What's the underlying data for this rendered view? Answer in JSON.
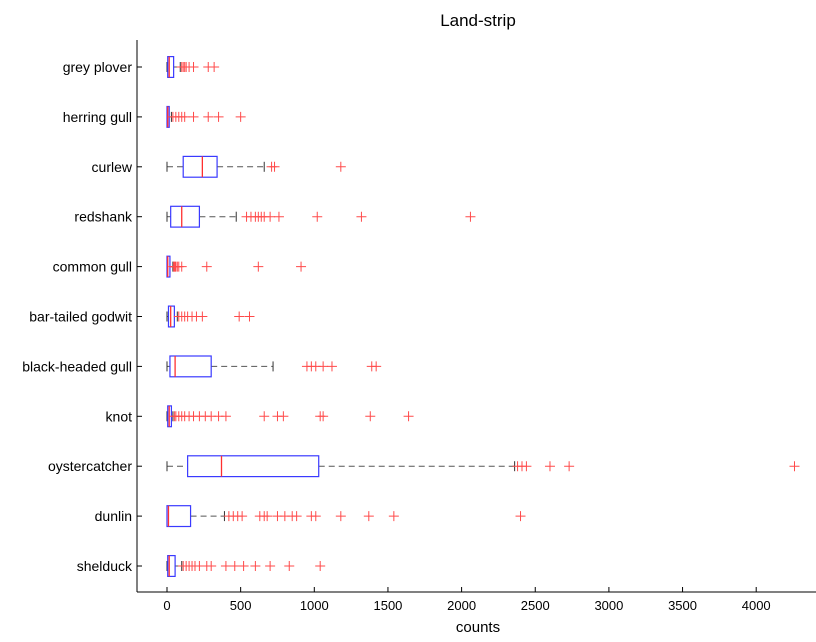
{
  "chart_data": {
    "type": "boxplot",
    "orientation": "horizontal",
    "title": "Land-strip",
    "xlabel": "counts",
    "ylabel": "",
    "xlim": [
      -200,
      4400
    ],
    "xticks": [
      0,
      500,
      1000,
      1500,
      2000,
      2500,
      3000,
      3500,
      4000,
      4500
    ],
    "xtick_labels": [
      "0",
      "500",
      "1000",
      "1500",
      "2000",
      "2500",
      "3000",
      "3500",
      "4000"
    ],
    "grid": false,
    "legend": "none",
    "colors": {
      "box": "#3a3aff",
      "median": "#ff3030",
      "whisker": "#555555",
      "outlier": "#ff4a4a"
    },
    "categories": [
      "grey plover",
      "herring gull",
      "curlew",
      "redshank",
      "common gull",
      "bar-tailed godwit",
      "black-headed gull",
      "knot",
      "oystercatcher",
      "dunlin",
      "shelduck"
    ],
    "series": [
      {
        "category": "grey plover",
        "min": 0,
        "q1": 5,
        "median": 15,
        "q3": 45,
        "max": 90,
        "outliers": [
          100,
          110,
          120,
          130,
          150,
          180,
          280,
          320
        ]
      },
      {
        "category": "herring gull",
        "min": 0,
        "q1": 0,
        "median": 5,
        "q3": 15,
        "max": 30,
        "outliers": [
          40,
          60,
          80,
          100,
          120,
          180,
          280,
          350,
          500
        ]
      },
      {
        "category": "curlew",
        "min": 0,
        "q1": 110,
        "median": 240,
        "q3": 340,
        "max": 660,
        "outliers": [
          710,
          730,
          1180
        ]
      },
      {
        "category": "redshank",
        "min": 0,
        "q1": 25,
        "median": 100,
        "q3": 220,
        "max": 470,
        "outliers": [
          540,
          570,
          600,
          620,
          640,
          660,
          700,
          760,
          1020,
          1320,
          2060
        ]
      },
      {
        "category": "common gull",
        "min": 0,
        "q1": 0,
        "median": 5,
        "q3": 20,
        "max": 40,
        "outliers": [
          45,
          50,
          55,
          60,
          70,
          80,
          100,
          270,
          620,
          910
        ]
      },
      {
        "category": "bar-tailed godwit",
        "min": 0,
        "q1": 10,
        "median": 25,
        "q3": 50,
        "max": 70,
        "outliers": [
          80,
          100,
          120,
          140,
          170,
          200,
          240,
          490,
          560
        ]
      },
      {
        "category": "black-headed gull",
        "min": 0,
        "q1": 20,
        "median": 55,
        "q3": 300,
        "max": 720,
        "outliers": [
          950,
          980,
          1010,
          1060,
          1120,
          1390,
          1420
        ]
      },
      {
        "category": "knot",
        "min": 0,
        "q1": 5,
        "median": 15,
        "q3": 30,
        "max": 40,
        "outliers": [
          50,
          60,
          80,
          100,
          120,
          150,
          180,
          220,
          260,
          300,
          350,
          400,
          660,
          750,
          790,
          1040,
          1060,
          1380,
          1640
        ]
      },
      {
        "category": "oystercatcher",
        "min": 0,
        "q1": 140,
        "median": 370,
        "q3": 1030,
        "max": 2360,
        "outliers": [
          2380,
          2410,
          2440,
          2600,
          2730,
          4260
        ]
      },
      {
        "category": "dunlin",
        "min": 0,
        "q1": 0,
        "median": 10,
        "q3": 160,
        "max": 390,
        "outliers": [
          420,
          450,
          480,
          510,
          630,
          660,
          680,
          750,
          800,
          850,
          880,
          980,
          1010,
          1180,
          1370,
          1540,
          2400
        ]
      },
      {
        "category": "shelduck",
        "min": 0,
        "q1": 5,
        "median": 15,
        "q3": 55,
        "max": 100,
        "outliers": [
          110,
          130,
          150,
          170,
          190,
          220,
          270,
          300,
          400,
          460,
          520,
          600,
          700,
          830,
          1040
        ]
      }
    ]
  }
}
